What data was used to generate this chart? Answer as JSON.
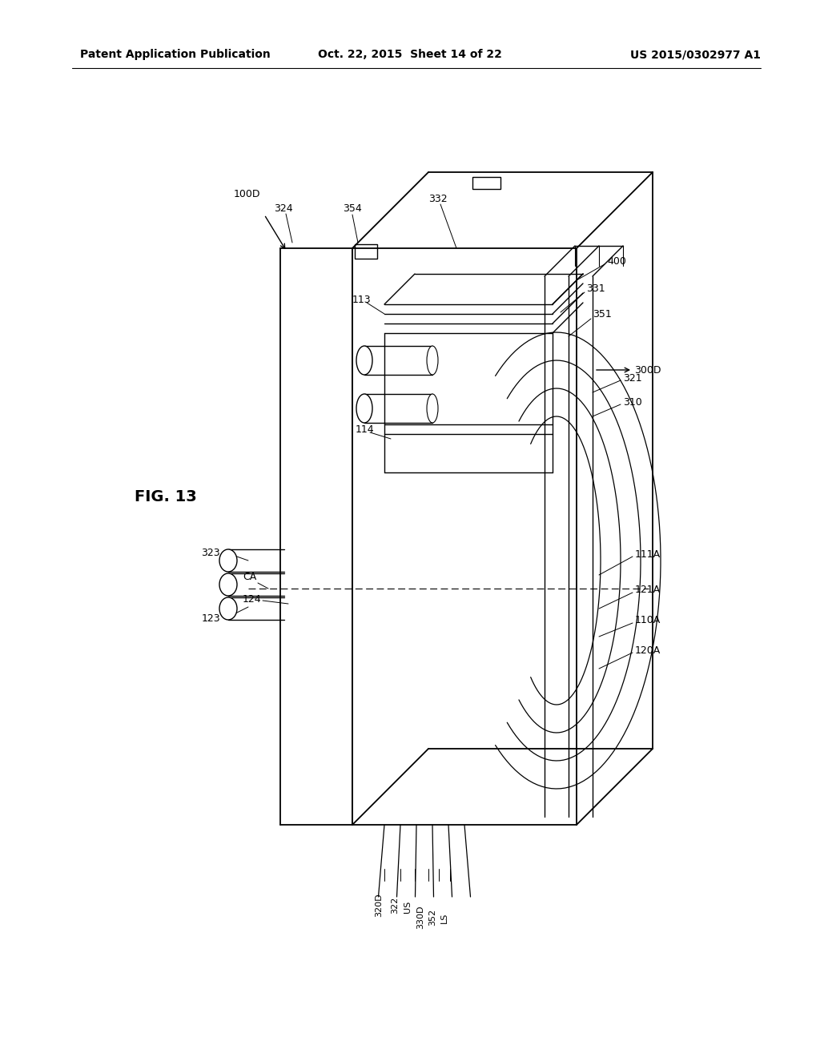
{
  "bg_color": "#ffffff",
  "header_left": "Patent Application Publication",
  "header_center": "Oct. 22, 2015  Sheet 14 of 22",
  "header_right": "US 2015/0302977 A1",
  "fig_label": "FIG. 13"
}
